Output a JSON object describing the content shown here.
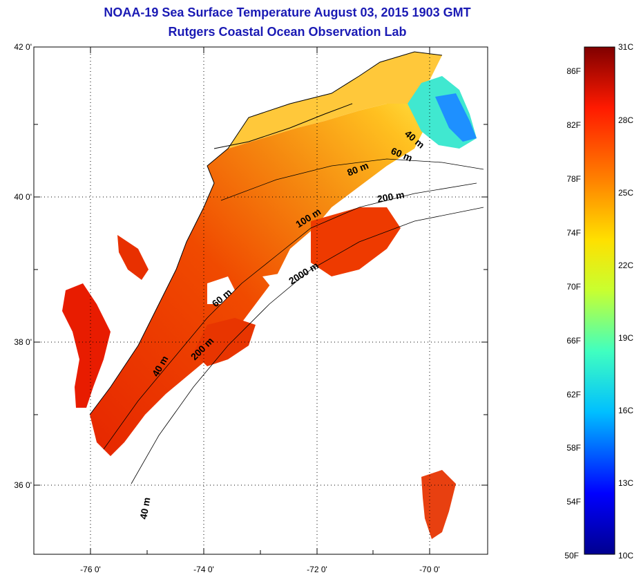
{
  "header": {
    "title": "NOAA-19 Sea Surface Temperature August 03, 2015 1903 GMT",
    "subtitle": "Rutgers Coastal Ocean Observation Lab"
  },
  "map": {
    "lat_labels": [
      "42 0'",
      "40 0'",
      "38 0'",
      "36 0'"
    ],
    "lon_labels": [
      "-76 0'",
      "-74 0'",
      "-72 0'",
      "-70 0'"
    ],
    "lat_range": [
      35.0,
      42.0
    ],
    "lon_range": [
      -77.0,
      -69.0
    ],
    "grid": "dotted",
    "contour_labels": [
      "40 m",
      "60 m",
      "80 m",
      "100 m",
      "200 m",
      "2000 m",
      "60 m",
      "200 m",
      "40 m",
      "40 m"
    ]
  },
  "colorbar": {
    "fahrenheit_labels": [
      "86F",
      "82F",
      "78F",
      "74F",
      "70F",
      "66F",
      "62F",
      "58F",
      "54F",
      "50F"
    ],
    "celsius_labels": [
      "31C",
      "28C",
      "25C",
      "22C",
      "19C",
      "16C",
      "13C",
      "10C"
    ],
    "range_celsius": [
      10,
      31
    ],
    "colors": [
      "#00008f",
      "#0000ff",
      "#00bfff",
      "#40ffc0",
      "#c8ff30",
      "#ffe000",
      "#ff8000",
      "#ff1a00",
      "#800000"
    ]
  }
}
